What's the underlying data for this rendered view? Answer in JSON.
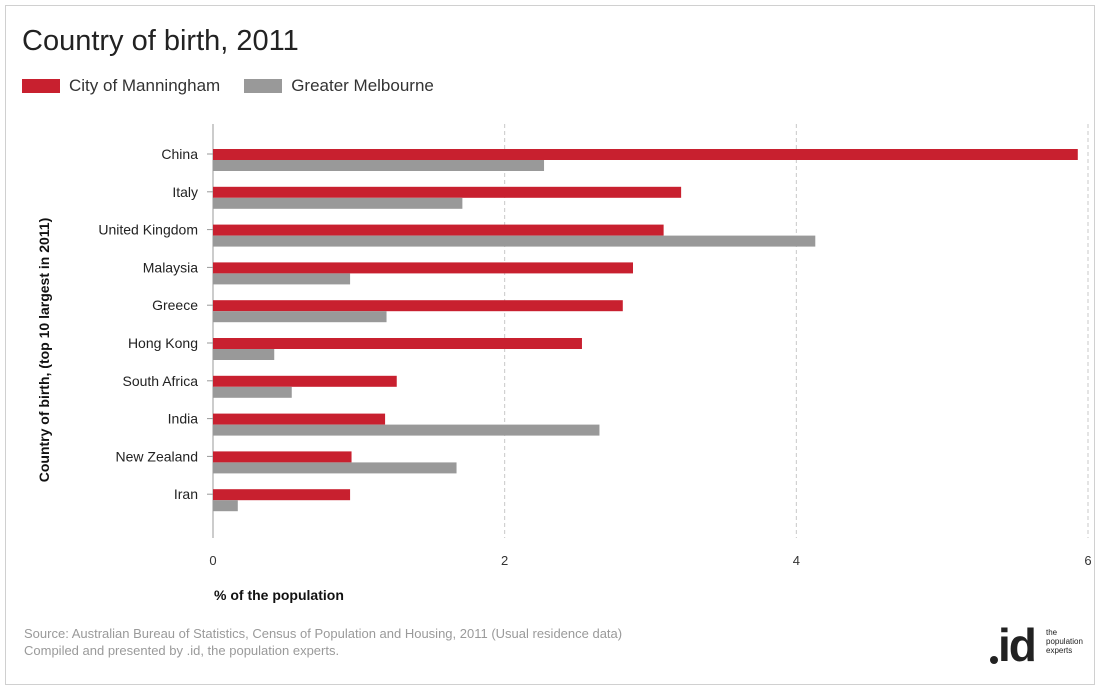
{
  "title": "Country of birth, 2011",
  "legend": [
    {
      "label": "City of Manningham",
      "color": "#c8202f"
    },
    {
      "label": "Greater Melbourne",
      "color": "#999999"
    }
  ],
  "ylabel": "Country of birth, (top 10 largest in 2011)",
  "xlabel": "% of the population",
  "source_line1": "Source: Australian Bureau of Statistics, Census of Population and Housing, 2011 (Usual residence data)",
  "source_line2": "Compiled and presented by .id, the population experts.",
  "logo": {
    "mark": "id",
    "tagline": "the population experts"
  },
  "chart_data": {
    "type": "bar",
    "orientation": "horizontal",
    "title": "Country of birth, 2011",
    "xlabel": "% of the population",
    "ylabel": "Country of birth, (top 10 largest in 2011)",
    "xlim": [
      0,
      6
    ],
    "xticks": [
      0,
      2,
      4,
      6
    ],
    "grid": "vertical dashed",
    "legend_placement": "top-left",
    "categories": [
      "China",
      "Italy",
      "United Kingdom",
      "Malaysia",
      "Greece",
      "Hong Kong",
      "South Africa",
      "India",
      "New Zealand",
      "Iran"
    ],
    "series": [
      {
        "name": "City of Manningham",
        "color": "#c8202f",
        "values": [
          5.93,
          3.21,
          3.09,
          2.88,
          2.81,
          2.53,
          1.26,
          1.18,
          0.95,
          0.94
        ]
      },
      {
        "name": "Greater Melbourne",
        "color": "#999999",
        "values": [
          2.27,
          1.71,
          4.13,
          0.94,
          1.19,
          0.42,
          0.54,
          2.65,
          1.67,
          0.17
        ]
      }
    ]
  }
}
